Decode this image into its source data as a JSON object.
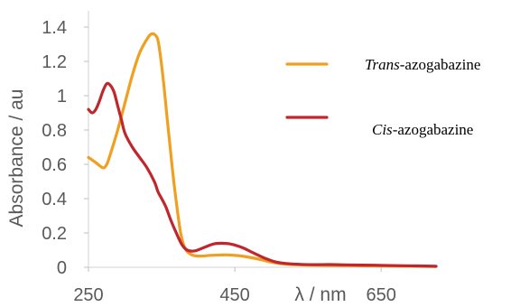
{
  "chart_data": {
    "type": "line",
    "xlabel": "λ / nm",
    "ylabel": "Absorbance / au",
    "xlim": [
      250,
      725
    ],
    "ylim": [
      0,
      1.4
    ],
    "x_ticks": [
      250,
      450,
      650
    ],
    "x_tick_labels": [
      "250",
      "450",
      "650"
    ],
    "y_ticks": [
      0,
      0.2,
      0.4,
      0.6,
      0.8,
      1.0,
      1.2,
      1.4
    ],
    "y_tick_labels": [
      "0",
      "0.2",
      "0.4",
      "0.6",
      "0.8",
      "1",
      "1.2",
      "1.4"
    ],
    "grid": false,
    "legend_position": "right",
    "series": [
      {
        "name": "Trans-azogabazine",
        "name_italic": "Trans",
        "name_rest": "-azogabazine",
        "color": "#f0a020",
        "points": [
          [
            250,
            0.64
          ],
          [
            260,
            0.61
          ],
          [
            270,
            0.58
          ],
          [
            275,
            0.6
          ],
          [
            280,
            0.66
          ],
          [
            290,
            0.8
          ],
          [
            300,
            0.96
          ],
          [
            310,
            1.12
          ],
          [
            320,
            1.25
          ],
          [
            330,
            1.33
          ],
          [
            336,
            1.36
          ],
          [
            342,
            1.35
          ],
          [
            346,
            1.3
          ],
          [
            352,
            1.1
          ],
          [
            358,
            0.85
          ],
          [
            364,
            0.6
          ],
          [
            370,
            0.38
          ],
          [
            376,
            0.2
          ],
          [
            382,
            0.11
          ],
          [
            390,
            0.075
          ],
          [
            400,
            0.065
          ],
          [
            420,
            0.07
          ],
          [
            440,
            0.072
          ],
          [
            460,
            0.065
          ],
          [
            480,
            0.05
          ],
          [
            500,
            0.03
          ],
          [
            520,
            0.018
          ],
          [
            560,
            0.012
          ],
          [
            600,
            0.01
          ],
          [
            650,
            0.008
          ],
          [
            700,
            0.006
          ],
          [
            725,
            0.005
          ]
        ]
      },
      {
        "name": "Cis-azogabazine",
        "name_italic": "Cis",
        "name_rest": "-azogabazine",
        "color": "#c0272d",
        "points": [
          [
            250,
            0.92
          ],
          [
            255,
            0.9
          ],
          [
            260,
            0.92
          ],
          [
            265,
            0.97
          ],
          [
            270,
            1.03
          ],
          [
            275,
            1.07
          ],
          [
            280,
            1.06
          ],
          [
            285,
            1.02
          ],
          [
            290,
            0.94
          ],
          [
            295,
            0.86
          ],
          [
            300,
            0.78
          ],
          [
            310,
            0.7
          ],
          [
            320,
            0.64
          ],
          [
            330,
            0.58
          ],
          [
            340,
            0.5
          ],
          [
            345,
            0.44
          ],
          [
            350,
            0.4
          ],
          [
            356,
            0.35
          ],
          [
            362,
            0.28
          ],
          [
            370,
            0.2
          ],
          [
            378,
            0.13
          ],
          [
            385,
            0.1
          ],
          [
            395,
            0.095
          ],
          [
            405,
            0.11
          ],
          [
            420,
            0.135
          ],
          [
            432,
            0.14
          ],
          [
            445,
            0.135
          ],
          [
            460,
            0.115
          ],
          [
            475,
            0.085
          ],
          [
            490,
            0.055
          ],
          [
            505,
            0.032
          ],
          [
            520,
            0.022
          ],
          [
            540,
            0.017
          ],
          [
            560,
            0.015
          ],
          [
            580,
            0.016
          ],
          [
            600,
            0.014
          ],
          [
            640,
            0.012
          ],
          [
            680,
            0.009
          ],
          [
            700,
            0.008
          ],
          [
            725,
            0.006
          ]
        ]
      }
    ]
  }
}
